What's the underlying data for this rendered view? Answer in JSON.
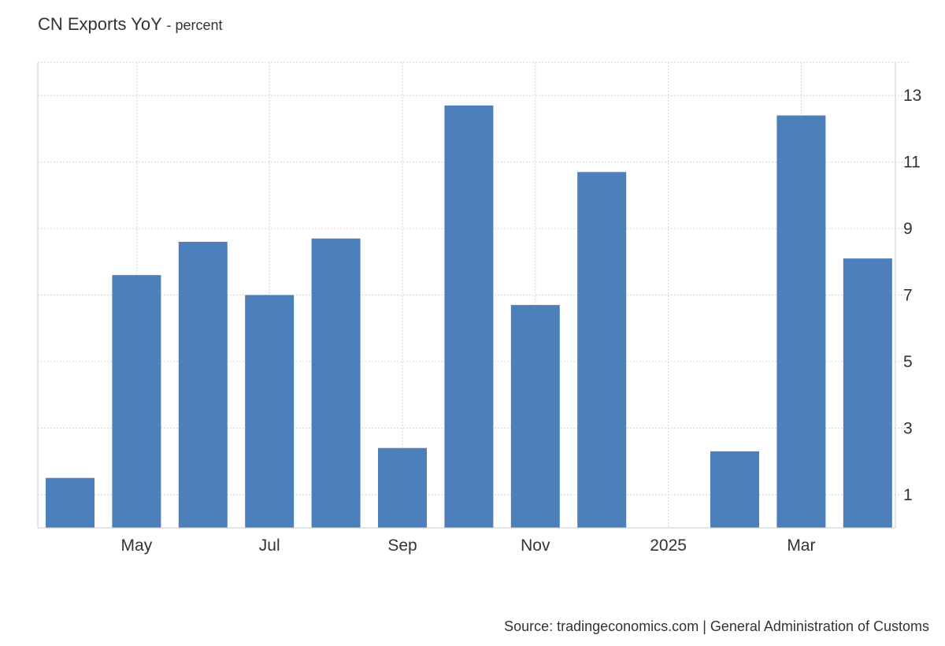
{
  "title": {
    "main": "CN Exports YoY",
    "sub": "- percent"
  },
  "source": "Source: tradingeconomics.com | General Administration of Customs",
  "colors": {
    "bar": "#4d80bb",
    "grid": "#d6d6d6",
    "axis": "#cccccc",
    "text": "#333333"
  },
  "chart_data": {
    "type": "bar",
    "title": "CN Exports YoY",
    "subtitle": "percent",
    "categories": [
      "2024-04",
      "2024-05",
      "2024-06",
      "2024-07",
      "2024-08",
      "2024-09",
      "2024-10",
      "2024-11",
      "2024-12",
      "2025-01",
      "2025-02",
      "2025-03",
      "2025-04"
    ],
    "values": [
      1.5,
      7.6,
      8.6,
      7.0,
      8.7,
      2.4,
      12.7,
      6.7,
      10.7,
      null,
      2.3,
      12.4,
      8.1
    ],
    "x_tick_labels": [
      {
        "category": "2024-05",
        "label": "May"
      },
      {
        "category": "2024-07",
        "label": "Jul"
      },
      {
        "category": "2024-09",
        "label": "Sep"
      },
      {
        "category": "2024-11",
        "label": "Nov"
      },
      {
        "category": "2025-01",
        "label": "2025"
      },
      {
        "category": "2025-03",
        "label": "Mar"
      }
    ],
    "y_ticks": [
      1,
      3,
      5,
      7,
      9,
      11,
      13
    ],
    "ylim": [
      0,
      14
    ],
    "y_axis_side": "right",
    "grid": true,
    "legend": "none"
  }
}
